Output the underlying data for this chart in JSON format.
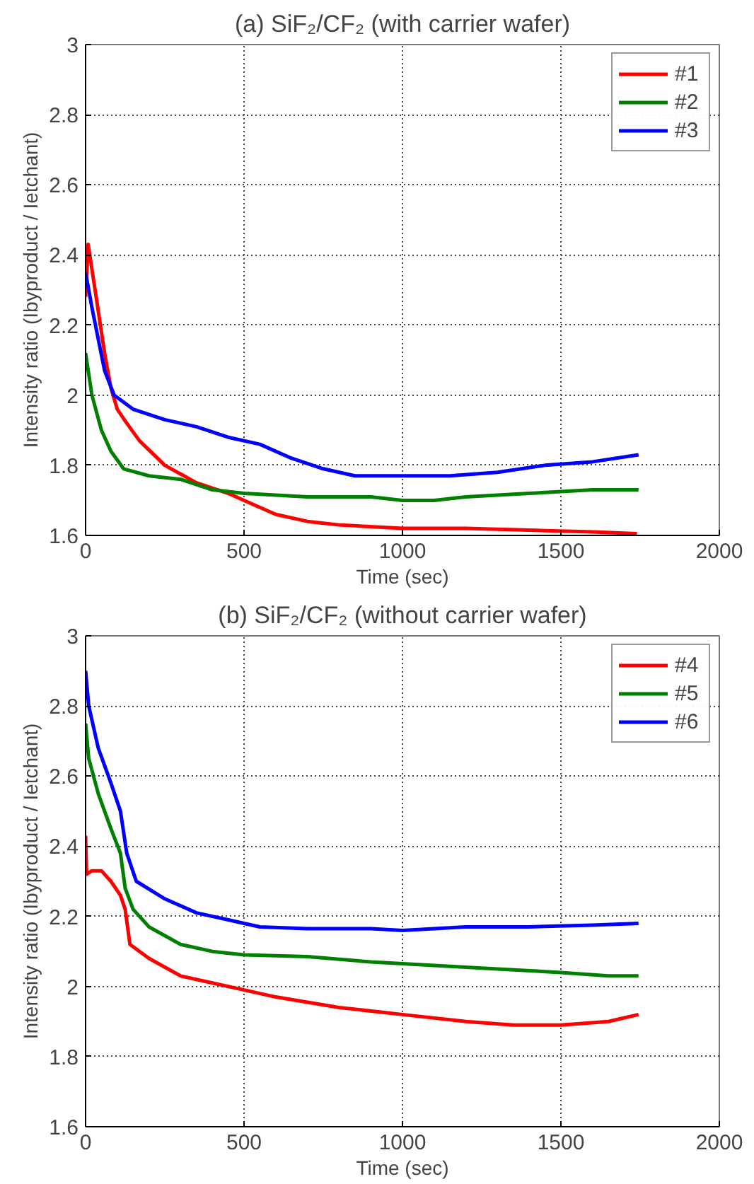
{
  "chart_data": [
    {
      "type": "line",
      "title": "(a) SiF₂/CF₂ (with carrier wafer)",
      "xlabel": "Time (sec)",
      "ylabel": "Intensity ratio (Ibyproduct / Ietchant)",
      "xlim": [
        0,
        2000
      ],
      "xticks": [
        0,
        500,
        1000,
        1500,
        2000
      ],
      "ylim": [
        1.6,
        3
      ],
      "yticks": [
        1.6,
        1.8,
        2,
        2.2,
        2.4,
        2.6,
        2.8,
        3
      ],
      "grid": true,
      "legend": "top right",
      "line_style": "solid",
      "series": [
        {
          "name": "#1",
          "color": "#ff0000",
          "x": [
            0,
            8,
            30,
            60,
            80,
            100,
            130,
            170,
            250,
            350,
            450,
            500,
            600,
            700,
            800,
            1000,
            1200,
            1400,
            1600,
            1740
          ],
          "values": [
            2.28,
            2.43,
            2.3,
            2.12,
            2.02,
            1.96,
            1.92,
            1.87,
            1.8,
            1.75,
            1.72,
            1.7,
            1.66,
            1.64,
            1.63,
            1.62,
            1.62,
            1.615,
            1.61,
            1.605
          ]
        },
        {
          "name": "#2",
          "color": "#008000",
          "x": [
            0,
            20,
            50,
            80,
            120,
            200,
            300,
            400,
            500,
            700,
            900,
            1000,
            1100,
            1200,
            1400,
            1600,
            1745
          ],
          "values": [
            2.12,
            2.0,
            1.9,
            1.84,
            1.79,
            1.77,
            1.76,
            1.73,
            1.72,
            1.71,
            1.71,
            1.7,
            1.7,
            1.71,
            1.72,
            1.73,
            1.73
          ]
        },
        {
          "name": "#3",
          "color": "#0000ff",
          "x": [
            0,
            20,
            60,
            90,
            150,
            250,
            350,
            450,
            550,
            650,
            750,
            850,
            1000,
            1150,
            1300,
            1450,
            1600,
            1745
          ],
          "values": [
            2.35,
            2.25,
            2.07,
            2.0,
            1.96,
            1.93,
            1.91,
            1.88,
            1.86,
            1.82,
            1.79,
            1.77,
            1.77,
            1.77,
            1.78,
            1.8,
            1.81,
            1.83
          ]
        }
      ]
    },
    {
      "type": "line",
      "title": "(b) SiF₂/CF₂ (without carrier wafer)",
      "xlabel": "Time (sec)",
      "ylabel": "Intensity ratio (Ibyproduct / Ietchant)",
      "xlim": [
        0,
        2000
      ],
      "xticks": [
        0,
        500,
        1000,
        1500,
        2000
      ],
      "ylim": [
        1.6,
        3
      ],
      "yticks": [
        1.6,
        1.8,
        2,
        2.2,
        2.4,
        2.6,
        2.8,
        3
      ],
      "grid": true,
      "legend": "top right",
      "line_style": "solid",
      "series": [
        {
          "name": "#4",
          "color": "#ff0000",
          "x": [
            0,
            3,
            20,
            50,
            80,
            110,
            125,
            140,
            200,
            300,
            400,
            500,
            600,
            800,
            1000,
            1200,
            1350,
            1500,
            1650,
            1745
          ],
          "values": [
            2.43,
            2.32,
            2.33,
            2.33,
            2.3,
            2.26,
            2.22,
            2.12,
            2.08,
            2.03,
            2.01,
            1.99,
            1.97,
            1.94,
            1.92,
            1.9,
            1.89,
            1.89,
            1.9,
            1.92
          ]
        },
        {
          "name": "#5",
          "color": "#008000",
          "x": [
            0,
            10,
            40,
            80,
            110,
            125,
            150,
            200,
            300,
            400,
            500,
            700,
            900,
            1100,
            1300,
            1500,
            1650,
            1745
          ],
          "values": [
            2.75,
            2.65,
            2.55,
            2.45,
            2.38,
            2.28,
            2.22,
            2.17,
            2.12,
            2.1,
            2.09,
            2.085,
            2.07,
            2.06,
            2.05,
            2.04,
            2.03,
            2.03
          ]
        },
        {
          "name": "#6",
          "color": "#0000ff",
          "x": [
            0,
            10,
            40,
            80,
            110,
            130,
            160,
            250,
            350,
            450,
            550,
            700,
            900,
            1000,
            1200,
            1400,
            1600,
            1745
          ],
          "values": [
            2.9,
            2.8,
            2.68,
            2.58,
            2.5,
            2.38,
            2.3,
            2.25,
            2.21,
            2.19,
            2.17,
            2.165,
            2.165,
            2.16,
            2.17,
            2.17,
            2.175,
            2.18
          ]
        }
      ]
    }
  ]
}
